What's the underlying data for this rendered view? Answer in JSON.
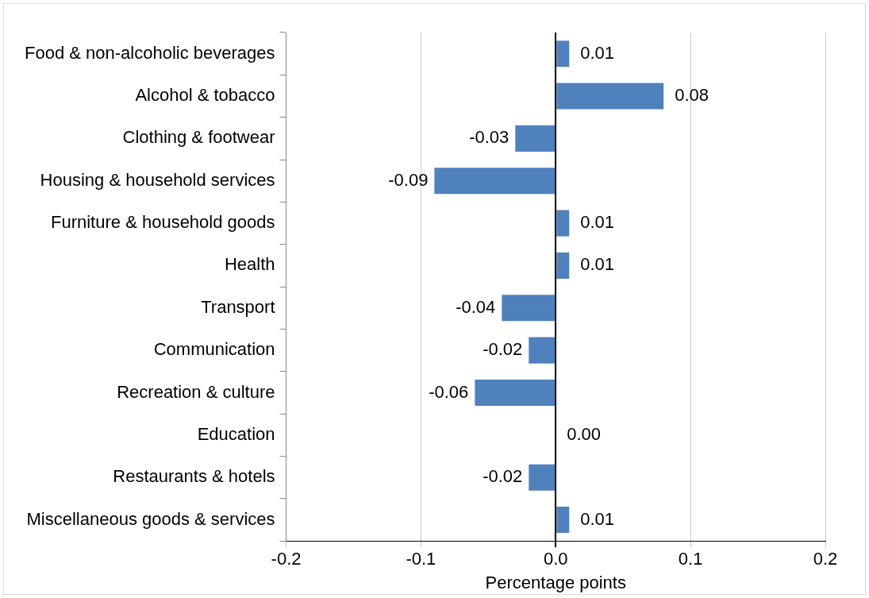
{
  "chart_data": {
    "type": "bar",
    "orientation": "horizontal",
    "categories": [
      "Food & non-alcoholic beverages",
      "Alcohol & tobacco",
      "Clothing & footwear",
      "Housing & household services",
      "Furniture & household goods",
      "Health",
      "Transport",
      "Communication",
      "Recreation & culture",
      "Education",
      "Restaurants & hotels",
      "Miscellaneous goods & services"
    ],
    "values": [
      0.01,
      0.08,
      -0.03,
      -0.09,
      0.01,
      0.01,
      -0.04,
      -0.02,
      -0.06,
      0,
      -0.02,
      0.01
    ],
    "value_labels": [
      "0.01",
      "0.08",
      "-0.03",
      "-0.09",
      "0.01",
      "0.01",
      "-0.04",
      "-0.02",
      "-0.06",
      "0.00",
      "-0.02",
      "0.01"
    ],
    "color": "#4f81bd",
    "xlim": [
      -0.2,
      0.2
    ],
    "xticks": [
      -0.2,
      -0.1,
      {
        "value": 0,
        "label": "0.0"
      },
      0.1,
      0.2
    ],
    "xlabel": "Percentage points",
    "grid": "x"
  }
}
